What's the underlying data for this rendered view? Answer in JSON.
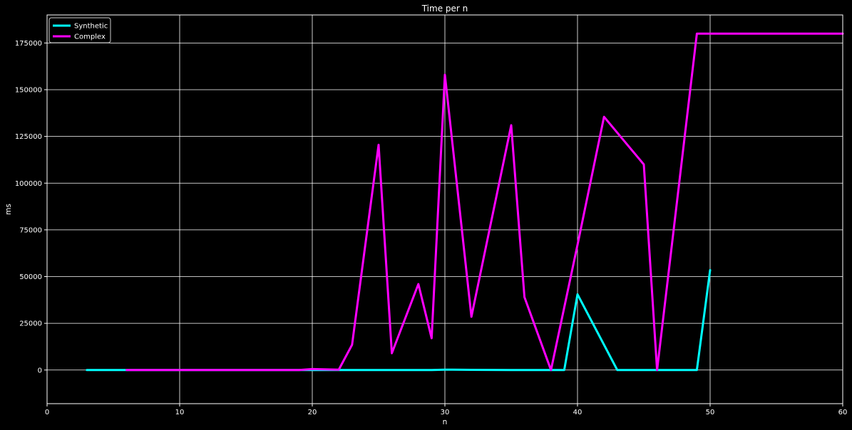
{
  "chart_data": {
    "type": "line",
    "title": "Time per n",
    "xlabel": "n",
    "ylabel": "ms",
    "xlim": [
      0,
      60
    ],
    "ylim": [
      -18000,
      190000
    ],
    "xticks": [
      0,
      10,
      20,
      30,
      40,
      50,
      60
    ],
    "yticks": [
      0,
      25000,
      50000,
      75000,
      100000,
      125000,
      150000,
      175000
    ],
    "grid": true,
    "legend_position": "top-left",
    "background": "#000000",
    "series": [
      {
        "name": "Synthetic",
        "color": "#00ffff",
        "points": [
          [
            3,
            0
          ],
          [
            6,
            0
          ],
          [
            10,
            0
          ],
          [
            15,
            0
          ],
          [
            20,
            0
          ],
          [
            22,
            0
          ],
          [
            25,
            0
          ],
          [
            29,
            0
          ],
          [
            30,
            200
          ],
          [
            32,
            100
          ],
          [
            35,
            0
          ],
          [
            38,
            0
          ],
          [
            39,
            0
          ],
          [
            40,
            40500
          ],
          [
            43,
            0
          ],
          [
            45,
            0
          ],
          [
            47,
            0
          ],
          [
            49,
            0
          ],
          [
            50,
            53500
          ]
        ]
      },
      {
        "name": "Complex",
        "color": "#ff00ff",
        "points": [
          [
            6,
            0
          ],
          [
            10,
            0
          ],
          [
            15,
            0
          ],
          [
            19,
            0
          ],
          [
            20,
            500
          ],
          [
            22,
            200
          ],
          [
            23,
            13500
          ],
          [
            25,
            120500
          ],
          [
            26,
            9000
          ],
          [
            28,
            46000
          ],
          [
            29,
            17000
          ],
          [
            30,
            158000
          ],
          [
            32,
            28500
          ],
          [
            35,
            131000
          ],
          [
            36,
            39000
          ],
          [
            38,
            0
          ],
          [
            40,
            67000
          ],
          [
            42,
            135500
          ],
          [
            45,
            110000
          ],
          [
            46,
            0
          ],
          [
            49,
            180000
          ],
          [
            50,
            180000
          ],
          [
            55,
            180000
          ],
          [
            60,
            180000
          ]
        ]
      }
    ]
  }
}
